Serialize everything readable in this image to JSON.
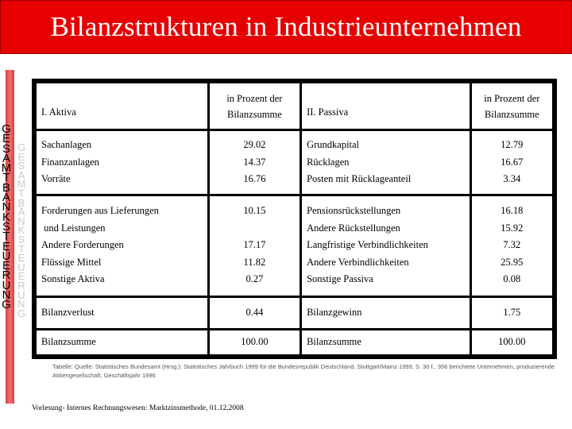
{
  "title": "Bilanzstrukturen in Industrieunternehmen",
  "side_text": "GESAMTBANKSTEUERUNG",
  "side_text_faint": "GESAMTBANKSTEUERUNG",
  "table": {
    "headers": {
      "aktiva": "I. Aktiva",
      "pct_aktiva": [
        "in Prozent der",
        "Bilanzsumme"
      ],
      "passiva": "II. Passiva",
      "pct_passiva": [
        "in Prozent der",
        "Bilanzsumme"
      ]
    },
    "group1": {
      "aktiva_labels": [
        "Sachanlagen",
        "Finanzanlagen",
        "Vorräte"
      ],
      "aktiva_values": [
        "29.02",
        "14.37",
        "16.76"
      ],
      "passiva_labels": [
        "Grundkapital",
        "Rücklagen",
        "Posten mit Rücklageanteil"
      ],
      "passiva_values": [
        "12.79",
        "16.67",
        "3.34"
      ]
    },
    "group2": {
      "aktiva_labels": [
        "Forderungen aus Lieferungen",
        " und Leistungen",
        "Andere Forderungen",
        "Flüssige Mittel",
        "Sonstige Aktiva"
      ],
      "aktiva_values": [
        "10.15",
        "",
        "17.17",
        "11.82",
        "0.27"
      ],
      "passiva_labels": [
        "Pensionsrückstellungen",
        "Andere Rückstellungen",
        "Langfristige Verbindlichkeiten",
        "Andere Verbindlichkeiten",
        "Sonstige Passiva"
      ],
      "passiva_values": [
        "16.18",
        "15.92",
        "7.32",
        "25.95",
        "0.08"
      ]
    },
    "verlust_label": "Bilanzverlust",
    "verlust_value": "0.44",
    "gewinn_label": "Bilanzgewinn",
    "gewinn_value": "1.75",
    "summe_label_aktiva": "Bilanzsumme",
    "summe_value_aktiva": "100.00",
    "summe_label_passiva": "Bilanzsumme",
    "summe_value_passiva": "100.00"
  },
  "source_note": "Tabelle: Quelle: Statistisches Bundesamt (Hrsg.): Statistisches Jahrbuch 1999 für die Bundesrepublik Deutschland, Stuttgart/Mainz 1999, S. 30 f., 356 berichtete Unternehmen, produzierende Aktiengesellschaft, Geschäftsjahr 1996",
  "footer": "Vorlesung- Internes Rechnungswesen: Marktzinsmethode, 01.12.2008",
  "colors": {
    "title_bar": "#e60000",
    "stripe": "#d84040"
  }
}
